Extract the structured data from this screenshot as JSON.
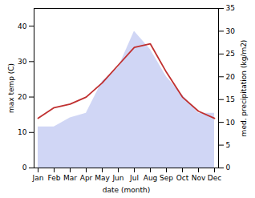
{
  "chart_data": {
    "type": "line",
    "xlabel": "date (month)",
    "ylabel": "max temp (C)",
    "y2label": "med. precipitation (kg/m2)",
    "categories": [
      "Jan",
      "Feb",
      "Mar",
      "Apr",
      "May",
      "Jun",
      "Jul",
      "Aug",
      "Sep",
      "Oct",
      "Nov",
      "Dec"
    ],
    "series": [
      {
        "type": "area",
        "axis": "y2",
        "color": "#b0bbee",
        "values": [
          9,
          9,
          11,
          12,
          19,
          22,
          30,
          26,
          20,
          16,
          12,
          12
        ]
      },
      {
        "type": "line",
        "color": "#c03030",
        "values": [
          14,
          17,
          18,
          20,
          24,
          29,
          34,
          35,
          27,
          20,
          16,
          14
        ]
      }
    ],
    "ylim": [
      0,
      45
    ],
    "yticks": [
      0,
      10,
      20,
      30,
      40
    ],
    "y2lim": [
      0,
      35
    ],
    "y2ticks": [
      0,
      5,
      10,
      15,
      20,
      25,
      30,
      35
    ],
    "grid": false
  }
}
